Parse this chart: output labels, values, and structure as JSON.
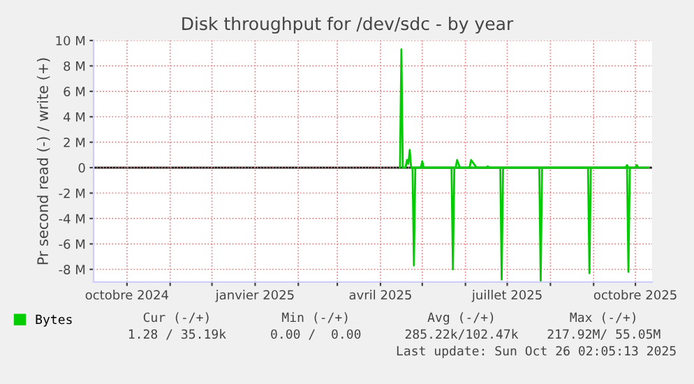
{
  "chart_data": {
    "type": "line",
    "title": "Disk throughput for /dev/sdc - by year",
    "ylabel": "Pr second read (-) / write (+)",
    "xlim": [
      "2024-09-07",
      "2025-10-13"
    ],
    "xticks": [
      {
        "value": "2024-10-01",
        "label": "octobre 2024"
      },
      {
        "value": "2024-11-01",
        "label": null
      },
      {
        "value": "2024-12-01",
        "label": null
      },
      {
        "value": "2025-01-01",
        "label": "janvier 2025"
      },
      {
        "value": "2025-02-01",
        "label": null
      },
      {
        "value": "2025-03-01",
        "label": null
      },
      {
        "value": "2025-04-01",
        "label": "avril 2025"
      },
      {
        "value": "2025-05-01",
        "label": null
      },
      {
        "value": "2025-06-01",
        "label": null
      },
      {
        "value": "2025-07-01",
        "label": "juillet 2025"
      },
      {
        "value": "2025-08-01",
        "label": null
      },
      {
        "value": "2025-09-01",
        "label": null
      },
      {
        "value": "2025-10-01",
        "label": "octobre 2025"
      }
    ],
    "ylim": [
      -9000000,
      10000000
    ],
    "yticks": [
      {
        "value": -8000000,
        "label": "-8 M"
      },
      {
        "value": -6000000,
        "label": "-6 M"
      },
      {
        "value": -4000000,
        "label": "-4 M"
      },
      {
        "value": -2000000,
        "label": "-2 M"
      },
      0,
      {
        "value": 2000000,
        "label": "2 M"
      },
      {
        "value": 4000000,
        "label": "4 M"
      },
      {
        "value": 6000000,
        "label": "6 M"
      },
      {
        "value": 8000000,
        "label": "8 M"
      },
      {
        "value": 10000000,
        "label": "10 M"
      }
    ],
    "grid": true,
    "legend": "bottom",
    "ref_lines": [
      {
        "axis": "y",
        "value": 0,
        "color": "#000000"
      }
    ],
    "series": [
      {
        "name": "Bytes",
        "color": "#00cc00",
        "x": [
          "2025-04-15",
          "2025-04-16",
          "2025-04-17",
          "2025-04-19",
          "2025-04-20",
          "2025-04-21",
          "2025-04-22",
          "2025-04-23",
          "2025-04-30",
          "2025-05-01",
          "2025-05-02",
          "2025-05-25",
          "2025-05-26",
          "2025-05-28",
          "2025-06-04",
          "2025-06-05",
          "2025-06-07",
          "2025-06-09",
          "2025-06-16",
          "2025-06-17",
          "2025-06-18",
          "2025-09-24",
          "2025-09-25",
          "2025-09-26",
          "2025-10-01",
          "2025-10-02",
          "2025-10-03",
          "2025-10-10"
        ],
        "values": [
          0,
          9300000,
          0,
          0,
          600000,
          300000,
          1400000,
          0,
          0,
          500000,
          0,
          0,
          600000,
          0,
          0,
          600000,
          300000,
          0,
          0,
          100000,
          0,
          0,
          200000,
          0,
          0,
          200000,
          0,
          0
        ]
      },
      {
        "color": "#00cc00",
        "x": [
          "2025-04-24",
          "2025-04-25",
          "2025-04-26",
          "2025-05-22",
          "2025-05-23",
          "2025-05-24",
          "2025-06-26",
          "2025-06-27",
          "2025-06-28",
          "2025-07-24",
          "2025-07-25",
          "2025-07-26",
          "2025-08-28",
          "2025-08-29",
          "2025-08-30",
          "2025-09-25",
          "2025-09-26",
          "2025-09-27"
        ],
        "values": [
          0,
          -7700000,
          0,
          0,
          -8000000,
          0,
          0,
          -8800000,
          0,
          0,
          -8900000,
          0,
          0,
          -8300000,
          0,
          0,
          -8200000,
          0
        ]
      }
    ],
    "annotations": [
      "Cur (-/+)",
      "Min (-/+)",
      "Avg (-/+)",
      "Max (-/+)",
      "1.28 / 35.19k",
      "0.00 /  0.00",
      "285.22k/102.47k",
      "217.92M/ 55.05M",
      "Last update: Sun Oct 26 02:05:13 2025"
    ]
  }
}
